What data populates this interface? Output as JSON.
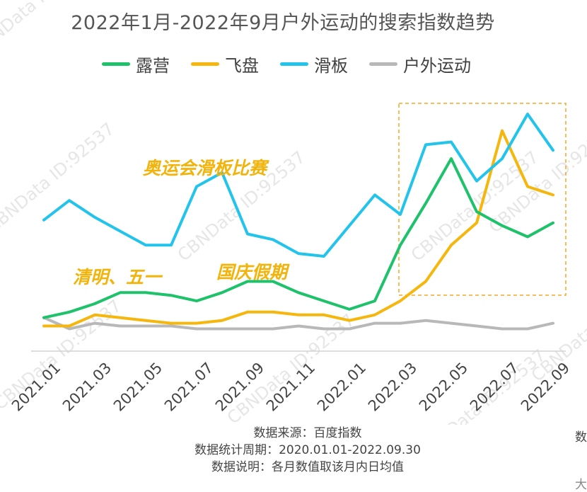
{
  "title": "2022年1月-2022年9月户外运动的搜索指数趋势",
  "colors": {
    "露营": "#1ec26a",
    "飞盘": "#f5b60e",
    "滑板": "#23c4ec",
    "户外运动": "#b8b8b8",
    "annotation": "#f2b30a",
    "box": "#f5a623",
    "axis": "#d4d4d4",
    "watermark": "#e6e6e6"
  },
  "watermark": "CBNData ID:92537",
  "chart_data": {
    "type": "line",
    "title": "2022年1月-2022年9月户外运动的搜索指数趋势",
    "x": [
      "2021.01",
      "2021.02",
      "2021.03",
      "2021.04",
      "2021.05",
      "2021.06",
      "2021.07",
      "2021.08",
      "2021.09",
      "2021.10",
      "2021.11",
      "2021.12",
      "2022.01",
      "2022.02",
      "2022.03",
      "2022.04",
      "2022.05",
      "2022.06",
      "2022.07",
      "2022.08",
      "2022.09"
    ],
    "tick_labels": [
      "2021.01",
      "2021.03",
      "2021.05",
      "2021.07",
      "2021.09",
      "2021.11",
      "2022.01",
      "2022.03",
      "2022.05",
      "2022.07",
      "2022.09"
    ],
    "ylim": [
      0,
      100
    ],
    "y_axis_visible": false,
    "grid": false,
    "legend_position": "top",
    "series": [
      {
        "name": "露营",
        "values": [
          12,
          14,
          17,
          21,
          21,
          20,
          18,
          21,
          25,
          25,
          21,
          18,
          15,
          18,
          38,
          53,
          69,
          50,
          45,
          41,
          46
        ]
      },
      {
        "name": "飞盘",
        "values": [
          9,
          9,
          13,
          12,
          11,
          10,
          10,
          11,
          14,
          14,
          13,
          13,
          11,
          13,
          18,
          25,
          38,
          46,
          79,
          59,
          56
        ]
      },
      {
        "name": "滑板",
        "values": [
          47,
          54,
          48,
          43,
          38,
          38,
          59,
          64,
          42,
          40,
          35,
          34,
          45,
          56,
          49,
          74,
          75,
          61,
          69,
          85,
          72
        ]
      },
      {
        "name": "户外运动",
        "values": [
          12,
          8,
          10,
          9,
          9,
          9,
          8,
          8,
          8,
          8,
          9,
          8,
          8,
          10,
          10,
          11,
          10,
          9,
          8,
          8,
          10
        ]
      }
    ],
    "highlight_region": {
      "from": "2022.03",
      "to": "2022.09",
      "style": "dashed"
    },
    "annotations": [
      {
        "text": "奥运会滑板比赛",
        "near": "2021.07"
      },
      {
        "text": "清明、五一",
        "near": "2021.04"
      },
      {
        "text": "国庆假期",
        "near": "2021.10"
      }
    ]
  },
  "notes": [
    "数据来源：百度指数",
    "数据统计周期：2020.01.01-2022.09.30",
    "数据说明：各月数值取该月内日均值"
  ],
  "edge_text": {
    "right_mid": "数",
    "right_bottom": "大"
  }
}
